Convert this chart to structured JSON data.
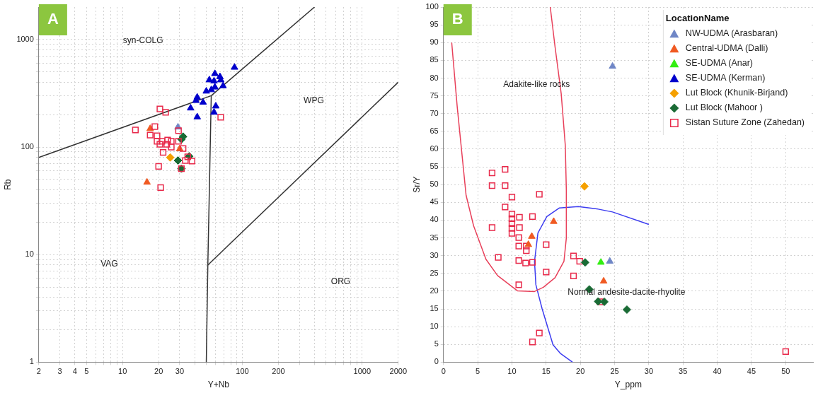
{
  "chart_data": [
    {
      "type": "scatter",
      "title": "A",
      "xlabel": "Y+Nb",
      "ylabel": "Rb",
      "log": "xy",
      "grid": true,
      "xlim": [
        2,
        2000
      ],
      "xticks": [
        2,
        3,
        4,
        5,
        {
          "value": 6,
          "label": null
        },
        {
          "value": 7,
          "label": null
        },
        {
          "value": 8,
          "label": null
        },
        {
          "value": 9,
          "label": null
        },
        10,
        20,
        30,
        {
          "value": 40,
          "label": null
        },
        {
          "value": 50,
          "label": null
        },
        {
          "value": 60,
          "label": null
        },
        {
          "value": 70,
          "label": null
        },
        {
          "value": 80,
          "label": null
        },
        {
          "value": 90,
          "label": null
        },
        100,
        200,
        {
          "value": 300,
          "label": null
        },
        {
          "value": 400,
          "label": null
        },
        {
          "value": 500,
          "label": null
        },
        {
          "value": 600,
          "label": null
        },
        {
          "value": 700,
          "label": null
        },
        {
          "value": 800,
          "label": null
        },
        {
          "value": 900,
          "label": null
        },
        1000,
        2000
      ],
      "ylim": [
        1,
        2000
      ],
      "yticks": [
        1,
        {
          "value": 2,
          "label": null
        },
        {
          "value": 3,
          "label": null
        },
        {
          "value": 4,
          "label": null
        },
        {
          "value": 5,
          "label": null
        },
        {
          "value": 6,
          "label": null
        },
        {
          "value": 7,
          "label": null
        },
        {
          "value": 8,
          "label": null
        },
        {
          "value": 9,
          "label": null
        },
        10,
        {
          "value": 20,
          "label": null
        },
        {
          "value": 30,
          "label": null
        },
        {
          "value": 40,
          "label": null
        },
        {
          "value": 50,
          "label": null
        },
        {
          "value": 60,
          "label": null
        },
        {
          "value": 70,
          "label": null
        },
        {
          "value": 80,
          "label": null
        },
        {
          "value": 90,
          "label": null
        },
        100,
        {
          "value": 200,
          "label": null
        },
        {
          "value": 300,
          "label": null
        },
        {
          "value": 400,
          "label": null
        },
        {
          "value": 500,
          "label": null
        },
        {
          "value": 600,
          "label": null
        },
        {
          "value": 700,
          "label": null
        },
        {
          "value": 800,
          "label": null
        },
        {
          "value": 900,
          "label": null
        },
        1000
      ],
      "series": [
        {
          "type": "line",
          "marker": "none",
          "color": "#333333",
          "x": [
            2,
            55,
            400
          ],
          "values": [
            80,
            300,
            2000
          ]
        },
        {
          "type": "line",
          "marker": "none",
          "color": "#333333",
          "x": [
            55,
            51.5,
            50
          ],
          "values": [
            300,
            8,
            1
          ]
        },
        {
          "type": "line",
          "marker": "none",
          "color": "#333333",
          "x": [
            51.5,
            2000
          ],
          "values": [
            8,
            400
          ]
        },
        {
          "marker": "triangle",
          "color": "#0000cc",
          "x": [
            86,
            59,
            65,
            53,
            58,
            66,
            69,
            59,
            50,
            55,
            42,
            47,
            41,
            37,
            60,
            58,
            42
          ],
          "values": [
            550,
            480,
            450,
            420,
            410,
            420,
            370,
            360,
            330,
            340,
            290,
            260,
            270,
            230,
            240,
            210,
            190
          ]
        },
        {
          "marker": "square",
          "color": "#e8294a",
          "x": [
            20.5,
            22.9,
            12.8,
            18.6,
            17,
            19.4,
            19.4,
            21.3,
            23.8,
            25.5,
            20.5,
            23.4,
            25.5,
            21.8,
            29.3,
            29.3,
            32,
            33.4,
            38,
            20,
            20.8,
            31,
            35,
            66
          ],
          "values": [
            226,
            210,
            144,
            155,
            129,
            127,
            113,
            113,
            116,
            113,
            106,
            106,
            100,
            89,
            142,
            113,
            97,
            75,
            74,
            66,
            42,
            63,
            81,
            189
          ]
        },
        {
          "marker": "triangle",
          "color": "#6f86c6",
          "x": [
            29
          ],
          "values": [
            153
          ]
        },
        {
          "marker": "triangle",
          "color": "#f05a22",
          "x": [
            17,
            16,
            30
          ],
          "values": [
            148,
            47,
            96
          ]
        },
        {
          "marker": "diamond",
          "color": "#f5a000",
          "x": [
            25
          ],
          "values": [
            80
          ]
        },
        {
          "marker": "diamond",
          "color": "#1a6b35",
          "x": [
            32,
            31,
            29,
            36,
            31
          ],
          "values": [
            125,
            118,
            75,
            82,
            63
          ]
        }
      ],
      "annotations": [
        "syn-COLG",
        "WPG",
        "VAG",
        "ORG"
      ]
    },
    {
      "type": "scatter",
      "title": "B",
      "xlabel": "Y_ppm",
      "ylabel": "Sr/Y",
      "grid": true,
      "legend": "top right",
      "legend_title": "LocationName",
      "xlim": [
        0,
        54
      ],
      "xticks": [
        0,
        5,
        10,
        15,
        20,
        25,
        30,
        35,
        40,
        45,
        50
      ],
      "ylim": [
        0,
        100
      ],
      "yticks": [
        0,
        5,
        10,
        15,
        20,
        25,
        30,
        35,
        40,
        45,
        50,
        55,
        60,
        65,
        70,
        75,
        80,
        85,
        90,
        95,
        100
      ],
      "series": [
        {
          "type": "line",
          "marker": "none",
          "color": "#e8405a",
          "x": [
            1.2,
            2.0,
            3.3,
            4.4,
            6.2,
            7.9,
            10.8,
            13.3,
            14.6,
            16.3,
            17.6,
            17.95,
            17.95,
            17.8,
            17.2,
            16.3,
            15.6
          ],
          "values": [
            90,
            72,
            47,
            38.4,
            29,
            24.4,
            20.1,
            19.9,
            21.1,
            23.8,
            28.4,
            35,
            48.3,
            61,
            75.6,
            88.8,
            100
          ]
        },
        {
          "type": "line",
          "marker": "none",
          "color": "#3c3cf0",
          "x": [
            18.85,
            17.06,
            16,
            14.4,
            13.5,
            13.3,
            13.8,
            15.1,
            16.9,
            19.7,
            22.6,
            24.7,
            30
          ],
          "values": [
            0,
            2.5,
            4.9,
            15.1,
            21.8,
            28.4,
            36.4,
            41,
            43.4,
            43.8,
            43.1,
            42.3,
            38.8
          ]
        },
        {
          "name": "NW-UDMA (Arasbaran)",
          "marker": "triangle",
          "color": "#6f86c6",
          "x": [
            24.3,
            24.7
          ],
          "values": [
            28.4,
            83.3
          ]
        },
        {
          "name": "Central-UDMA (Dalli)",
          "marker": "triangle",
          "color": "#f05a22",
          "x": [
            12.9,
            12.4,
            16.1,
            23.4
          ],
          "values": [
            35.4,
            33.1,
            39.6,
            22.8
          ]
        },
        {
          "name": "SE-UDMA (Anar)",
          "marker": "triangle",
          "color": "#33ee11",
          "x": [
            23
          ],
          "values": [
            28.1
          ]
        },
        {
          "name": "SE-UDMA (Kerman)",
          "marker": "triangle",
          "color": "#0000cc"
        },
        {
          "name": "Lut Block (Khunik-Birjand)",
          "marker": "diamond",
          "color": "#f5a000",
          "x": [
            20.6
          ],
          "values": [
            49.5
          ]
        },
        {
          "name": "Lut Block (Mahoor )",
          "marker": "diamond",
          "color": "#1a6b35",
          "x": [
            20.7,
            21.3,
            22.6,
            23.5,
            26.8
          ],
          "values": [
            28.1,
            20.5,
            17.1,
            17,
            14.8
          ]
        },
        {
          "name": "Sistan Suture Zone (Zahedan)",
          "marker": "square",
          "color": "#e8294a",
          "x": [
            7.1,
            9,
            7.1,
            9,
            10,
            14,
            9,
            10,
            10,
            11.1,
            13,
            7.1,
            10,
            10,
            10,
            11.1,
            11,
            11,
            12.1,
            12.1,
            15,
            8,
            11,
            12,
            13,
            15,
            11,
            19,
            19.9,
            19,
            14,
            13,
            22.9,
            50
          ],
          "values": [
            53.3,
            54.3,
            49.7,
            49.7,
            46.5,
            47.3,
            43.7,
            41.7,
            40.4,
            40.8,
            41,
            37.9,
            39,
            37.7,
            36.3,
            37.9,
            35.1,
            32.7,
            32.7,
            31.4,
            33.1,
            29.5,
            28.6,
            27.9,
            28.1,
            25.4,
            21.8,
            29.9,
            28.4,
            24.3,
            8.2,
            5.7,
            17,
            3
          ]
        }
      ],
      "annotations": [
        "Adakite-like rocks",
        "Normal andesite-dacite-rhyolite"
      ]
    }
  ]
}
